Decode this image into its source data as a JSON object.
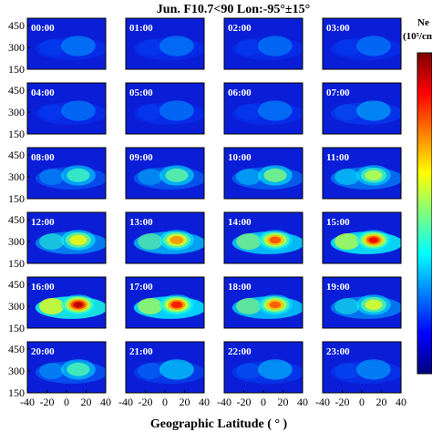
{
  "chart_data": {
    "type": "heatmap",
    "title": "Jun. F10.7<90 Lon:-95°±15°",
    "xlabel": "Geographic Latitude ( ° )",
    "x_ticks": [
      "-40",
      "-20",
      "0",
      "20",
      "40"
    ],
    "xlim": [
      -40,
      40
    ],
    "y_ticks": [
      "450",
      "300",
      "150"
    ],
    "ylim": [
      150,
      500
    ],
    "colorbar": {
      "title_line1": "Ne",
      "title_line2": "(10⁵/cm",
      "colormap": "jet",
      "stops": [
        "#00007f",
        "#0000ff",
        "#007fff",
        "#00ffff",
        "#7fff7f",
        "#ffff00",
        "#ff7f00",
        "#ff0000",
        "#7f0000"
      ]
    },
    "background_color": "#0a1ed8",
    "panels": [
      {
        "label": "00:00",
        "intensity": 0.05
      },
      {
        "label": "01:00",
        "intensity": 0.04
      },
      {
        "label": "02:00",
        "intensity": 0.03
      },
      {
        "label": "03:00",
        "intensity": 0.03
      },
      {
        "label": "04:00",
        "intensity": 0.03
      },
      {
        "label": "05:00",
        "intensity": 0.03
      },
      {
        "label": "06:00",
        "intensity": 0.04
      },
      {
        "label": "07:00",
        "intensity": 0.1
      },
      {
        "label": "08:00",
        "intensity": 0.28
      },
      {
        "label": "09:00",
        "intensity": 0.33
      },
      {
        "label": "10:00",
        "intensity": 0.38
      },
      {
        "label": "11:00",
        "intensity": 0.45
      },
      {
        "label": "12:00",
        "intensity": 0.55
      },
      {
        "label": "13:00",
        "intensity": 0.7
      },
      {
        "label": "14:00",
        "intensity": 0.8
      },
      {
        "label": "15:00",
        "intensity": 0.92
      },
      {
        "label": "16:00",
        "intensity": 1.0
      },
      {
        "label": "17:00",
        "intensity": 0.88
      },
      {
        "label": "18:00",
        "intensity": 0.78
      },
      {
        "label": "19:00",
        "intensity": 0.5
      },
      {
        "label": "20:00",
        "intensity": 0.3
      },
      {
        "label": "21:00",
        "intensity": 0.18
      },
      {
        "label": "22:00",
        "intensity": 0.12
      },
      {
        "label": "23:00",
        "intensity": 0.08
      }
    ]
  }
}
